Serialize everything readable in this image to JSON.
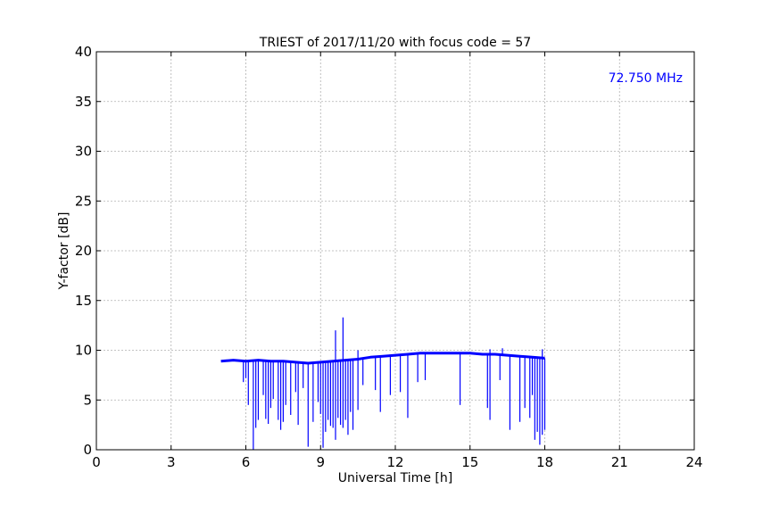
{
  "chart_data": {
    "type": "line",
    "title": "TRIEST of 2017/11/20 with focus code = 57",
    "xlabel": "Universal Time [h]",
    "ylabel": "Y-factor [dB]",
    "xlim": [
      0,
      24
    ],
    "ylim": [
      0,
      40
    ],
    "xticks": [
      0,
      3,
      6,
      9,
      12,
      15,
      18,
      21,
      24
    ],
    "yticks": [
      0,
      5,
      10,
      15,
      20,
      25,
      30,
      35,
      40
    ],
    "grid": true,
    "annotation": "72.750 MHz",
    "annotation_position": "top-right",
    "series": [
      {
        "color": "#0000ff",
        "baseline_x": [
          5.0,
          5.5,
          6.0,
          6.5,
          7.0,
          7.5,
          8.0,
          8.5,
          9.0,
          9.5,
          10.0,
          10.5,
          11.0,
          11.5,
          12.0,
          12.5,
          13.0,
          13.5,
          14.0,
          14.5,
          15.0,
          15.5,
          16.0,
          16.5,
          17.0,
          17.5,
          18.0
        ],
        "baseline_y": [
          8.9,
          9.0,
          8.9,
          9.0,
          8.9,
          8.9,
          8.8,
          8.7,
          8.8,
          8.9,
          9.0,
          9.1,
          9.3,
          9.4,
          9.5,
          9.6,
          9.7,
          9.7,
          9.7,
          9.7,
          9.7,
          9.6,
          9.6,
          9.5,
          9.4,
          9.3,
          9.2
        ],
        "dips_x": [
          5.9,
          6.0,
          6.1,
          6.3,
          6.4,
          6.5,
          6.7,
          6.8,
          6.9,
          7.0,
          7.1,
          7.3,
          7.4,
          7.5,
          7.6,
          7.8,
          8.0,
          8.1,
          8.3,
          8.5,
          8.7,
          8.9,
          9.0,
          9.1,
          9.2,
          9.3,
          9.4,
          9.5,
          9.6,
          9.7,
          9.8,
          9.9,
          10.0,
          10.1,
          10.2,
          10.3,
          10.5,
          10.7,
          11.2,
          11.4,
          11.8,
          12.2,
          12.5,
          12.9,
          13.2,
          14.6,
          15.7,
          15.8,
          16.2,
          16.6,
          17.0,
          17.2,
          17.4,
          17.5,
          17.6,
          17.7,
          17.8,
          17.9,
          18.0
        ],
        "dips_y": [
          6.8,
          7.2,
          4.5,
          0.0,
          2.2,
          3.0,
          5.5,
          3.1,
          2.6,
          4.2,
          5.1,
          3.0,
          2.0,
          2.8,
          4.5,
          3.5,
          5.8,
          2.5,
          6.2,
          0.3,
          2.8,
          4.8,
          3.6,
          0.2,
          1.8,
          3.0,
          2.4,
          2.2,
          1.0,
          3.2,
          2.5,
          2.2,
          3.0,
          1.5,
          3.8,
          2.0,
          4.0,
          6.5,
          6.0,
          3.8,
          5.5,
          5.8,
          3.2,
          6.8,
          7.0,
          4.5,
          4.2,
          3.0,
          7.0,
          2.0,
          2.8,
          4.2,
          3.2,
          5.5,
          1.0,
          1.8,
          0.5,
          1.5,
          2.0
        ],
        "spikes_x": [
          9.6,
          9.9,
          10.5,
          15.8,
          16.3,
          17.9
        ],
        "spikes_y": [
          12.0,
          13.3,
          10.0,
          10.1,
          10.2,
          10.1
        ]
      }
    ]
  }
}
